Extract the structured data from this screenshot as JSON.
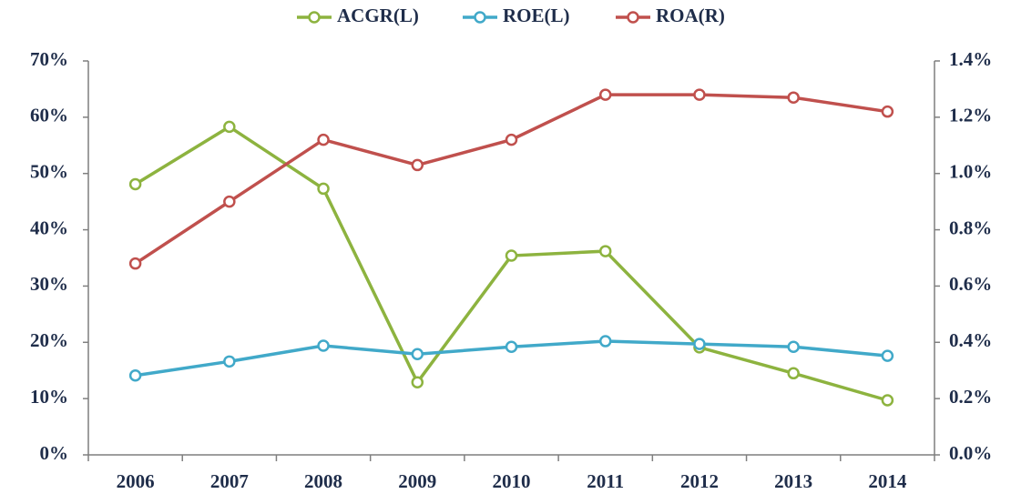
{
  "chart_data": {
    "type": "line",
    "categories": [
      "2006",
      "2007",
      "2008",
      "2009",
      "2010",
      "2011",
      "2012",
      "2013",
      "2014"
    ],
    "series": [
      {
        "name": "ACGR(L)",
        "color": "#8db33f",
        "values": [
          48.1,
          58.3,
          47.3,
          12.9,
          35.4,
          36.2,
          19.1,
          14.5,
          9.7
        ]
      },
      {
        "name": "ROE(L)",
        "color": "#41a9c9",
        "values": [
          14.1,
          16.6,
          19.4,
          17.9,
          19.2,
          20.2,
          19.7,
          19.2,
          17.6
        ]
      },
      {
        "name": "ROA(R)",
        "color": "#c0504d",
        "axis": "y2",
        "values": [
          0.68,
          0.9,
          1.12,
          1.03,
          1.12,
          1.28,
          1.28,
          1.27,
          1.22
        ]
      }
    ],
    "ylim": [
      0,
      70
    ],
    "yticks": [
      {
        "value": 0,
        "label": "0%"
      },
      {
        "value": 10,
        "label": "10%"
      },
      {
        "value": 20,
        "label": "20%"
      },
      {
        "value": 30,
        "label": "30%"
      },
      {
        "value": 40,
        "label": "40%"
      },
      {
        "value": 50,
        "label": "50%"
      },
      {
        "value": 60,
        "label": "60%"
      },
      {
        "value": 70,
        "label": "70%"
      }
    ],
    "y2lim": [
      0,
      1.4
    ],
    "y2ticks": [
      {
        "value": 0,
        "label": "0.0%"
      },
      {
        "value": 0.2,
        "label": "0.2%"
      },
      {
        "value": 0.4,
        "label": "0.4%"
      },
      {
        "value": 0.6,
        "label": "0.6%"
      },
      {
        "value": 0.8,
        "label": "0.8%"
      },
      {
        "value": 1.0,
        "label": "1.0%"
      },
      {
        "value": 1.2,
        "label": "1.2%"
      },
      {
        "value": 1.4,
        "label": "1.4%"
      }
    ],
    "legend": "top",
    "grid": false
  }
}
